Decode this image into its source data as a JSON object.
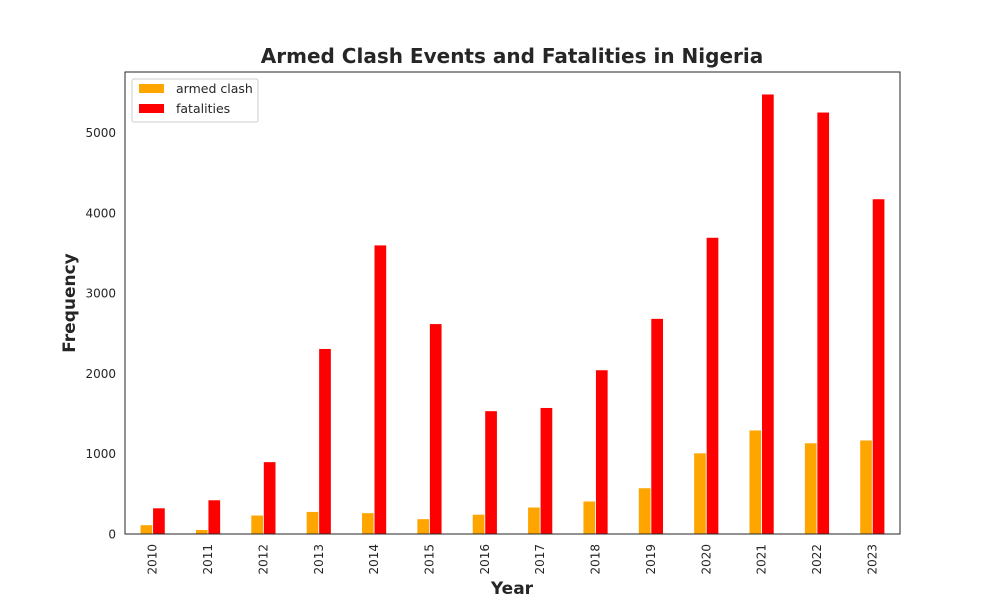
{
  "chart_data": {
    "type": "bar",
    "title": "Armed Clash Events and Fatalities in Nigeria",
    "xlabel": "Year",
    "ylabel": "Frequency",
    "categories": [
      "2010",
      "2011",
      "2012",
      "2013",
      "2014",
      "2015",
      "2016",
      "2017",
      "2018",
      "2019",
      "2020",
      "2021",
      "2022",
      "2023"
    ],
    "series": [
      {
        "name": "armed clash",
        "color": "#ffa500",
        "values": [
          115,
          55,
          235,
          280,
          265,
          190,
          245,
          335,
          410,
          575,
          1010,
          1295,
          1135,
          1170
        ]
      },
      {
        "name": "fatalities",
        "color": "#ff0000",
        "values": [
          325,
          425,
          900,
          2310,
          3600,
          2620,
          1535,
          1575,
          2045,
          2685,
          3695,
          5480,
          5255,
          4175
        ]
      }
    ],
    "yticks": [
      0,
      1000,
      2000,
      3000,
      4000,
      5000
    ],
    "ylim": [
      0,
      5755
    ],
    "grid": false,
    "legend_position": "top-left"
  }
}
